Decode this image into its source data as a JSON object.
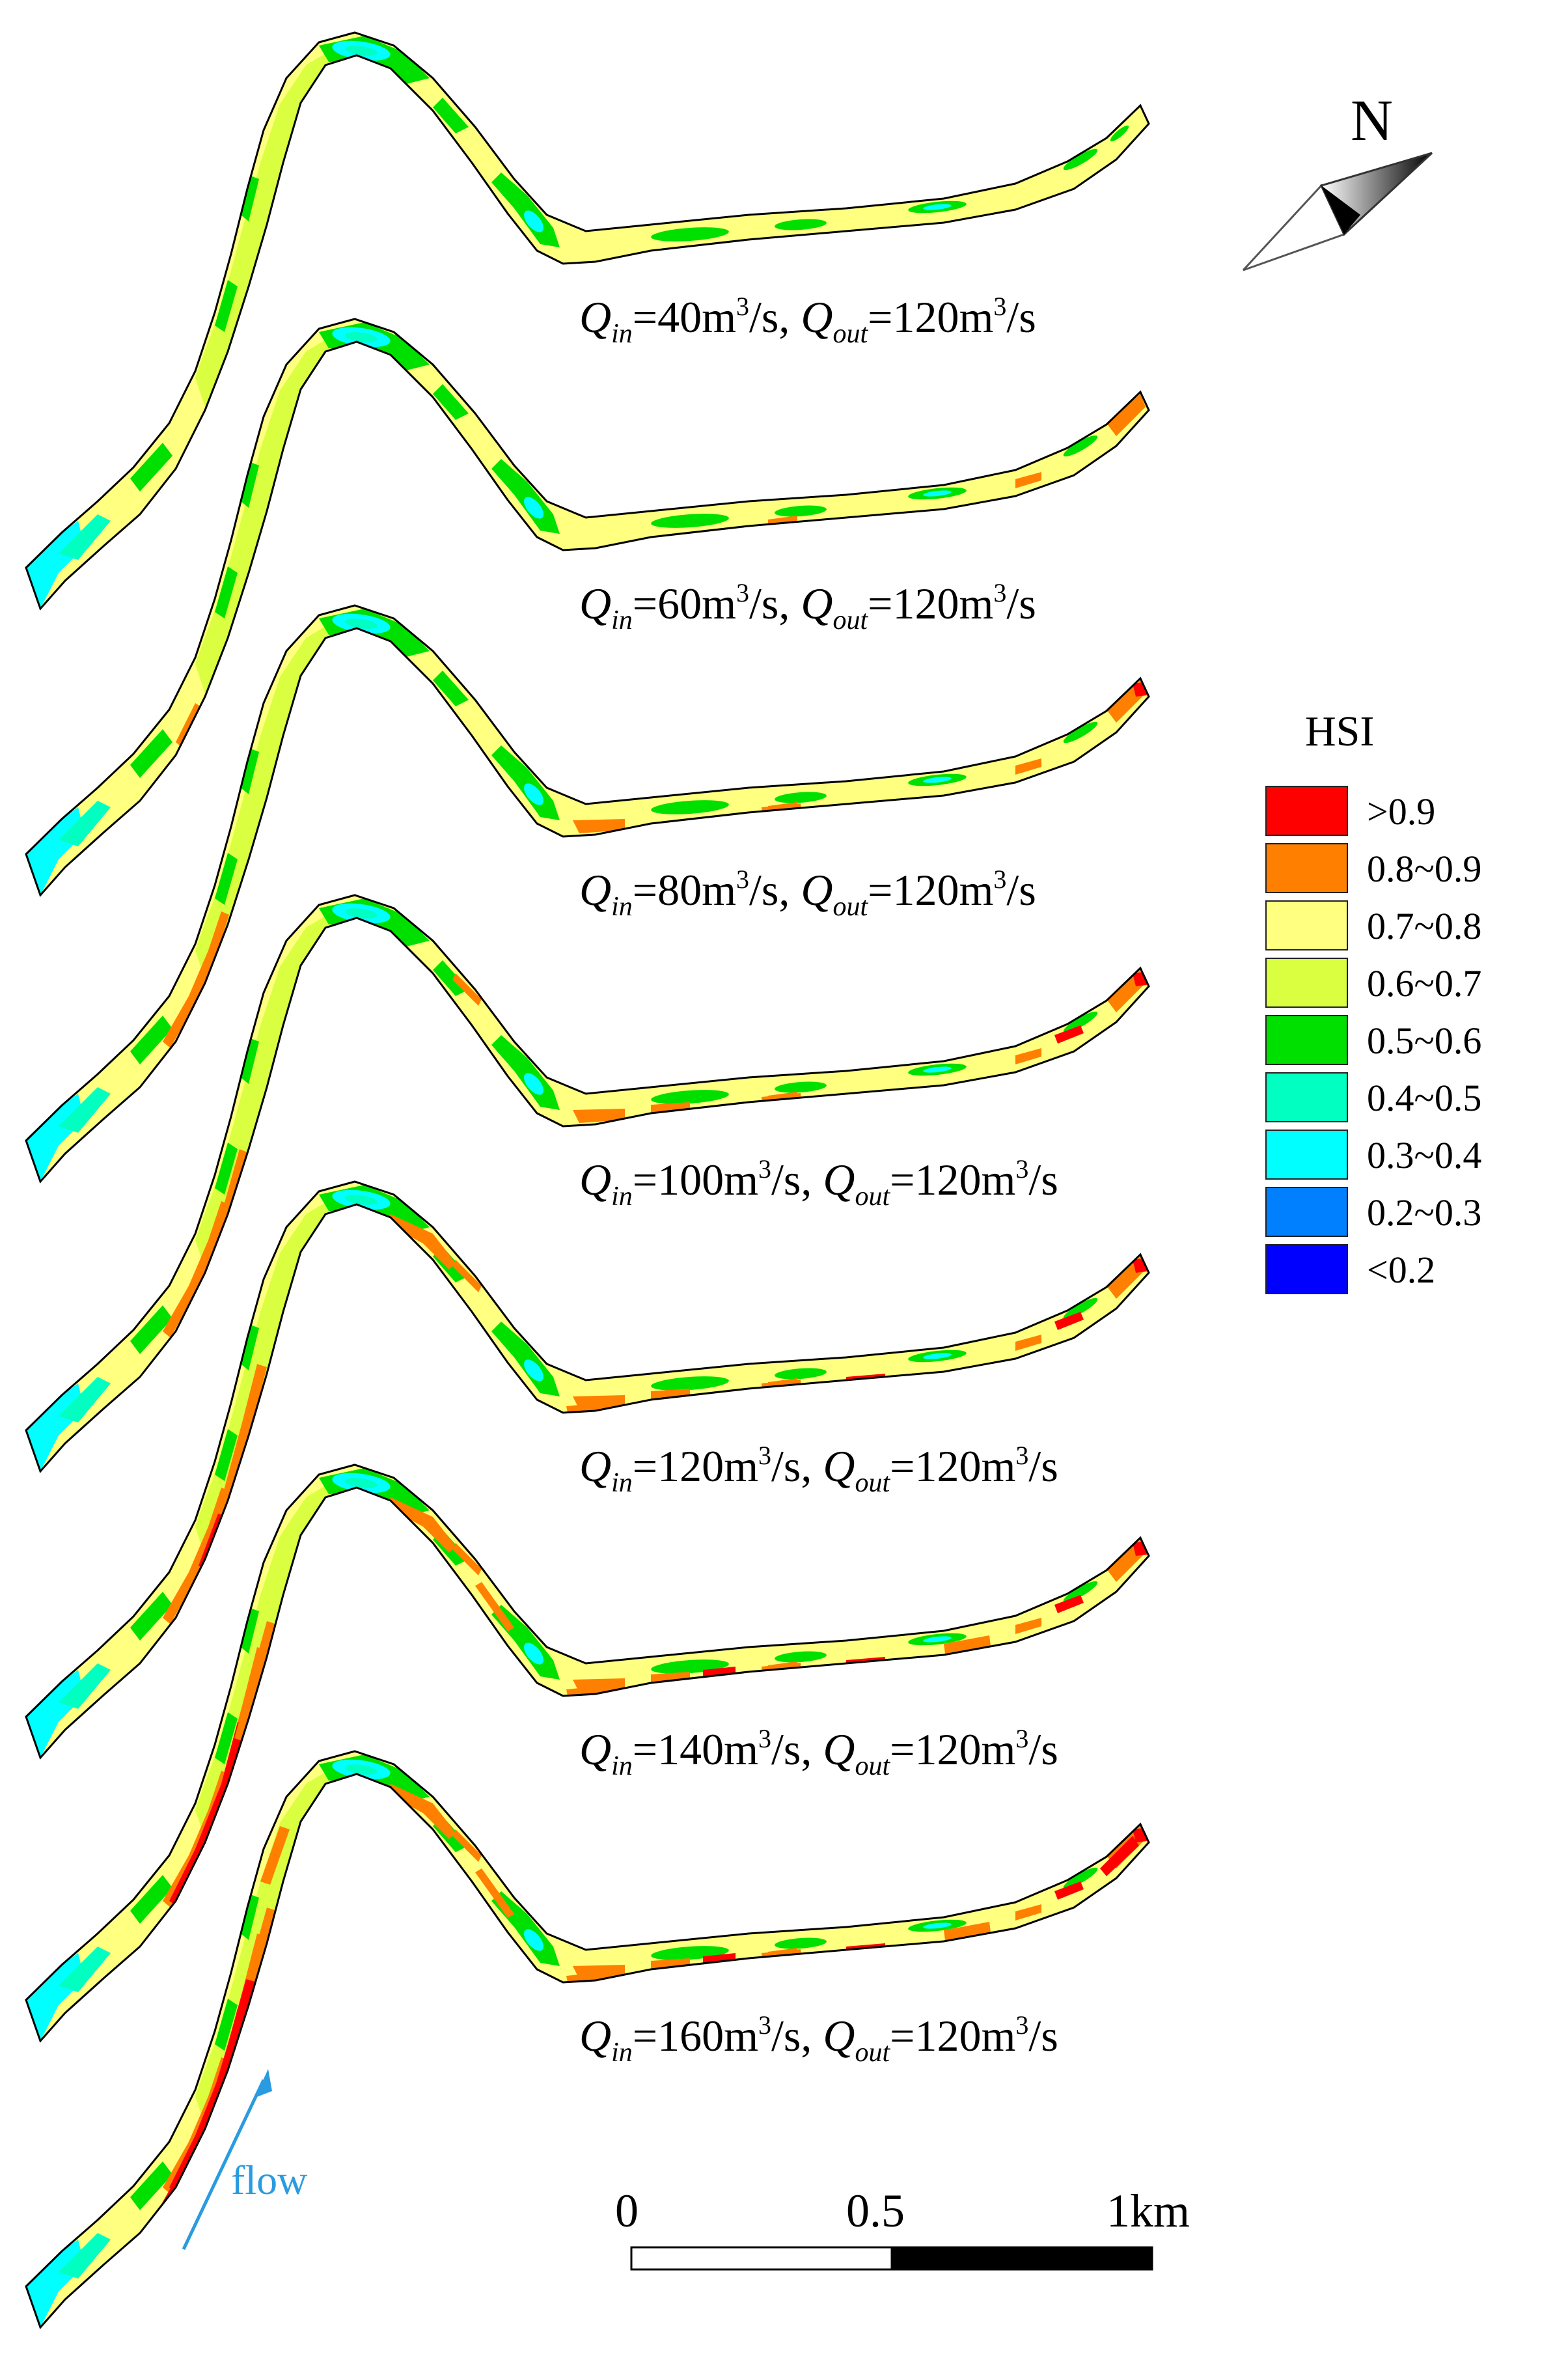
{
  "panels": [
    {
      "q_in": "40",
      "q_out": "120",
      "intensity": 0
    },
    {
      "q_in": "60",
      "q_out": "120",
      "intensity": 1
    },
    {
      "q_in": "80",
      "q_out": "120",
      "intensity": 2
    },
    {
      "q_in": "100",
      "q_out": "120",
      "intensity": 3
    },
    {
      "q_in": "120",
      "q_out": "120",
      "intensity": 4
    },
    {
      "q_in": "140",
      "q_out": "120",
      "intensity": 5
    },
    {
      "q_in": "160",
      "q_out": "120",
      "intensity": 6
    }
  ],
  "caption": {
    "q": "Q",
    "in_sub": "in",
    "out_sub": "out",
    "unit": "m",
    "unit_sup": "3",
    "per_s": "/s",
    "eq": "=",
    "sep": ", "
  },
  "legend": {
    "title": "HSI",
    "items": [
      {
        "label": ">0.9",
        "color": "#ff0000"
      },
      {
        "label": "0.8~0.9",
        "color": "#ff8000"
      },
      {
        "label": "0.7~0.8",
        "color": "#ffff80"
      },
      {
        "label": "0.6~0.7",
        "color": "#d9ff40"
      },
      {
        "label": "0.5~0.6",
        "color": "#00e000"
      },
      {
        "label": "0.4~0.5",
        "color": "#00ffc0"
      },
      {
        "label": "0.3~0.4",
        "color": "#00ffff"
      },
      {
        "label": "0.2~0.3",
        "color": "#0080ff"
      },
      {
        "label": "<0.2",
        "color": "#0000ff"
      }
    ]
  },
  "north_label": "N",
  "flow_label": "flow",
  "flow_color": "#2a9be0",
  "scale_bar": {
    "labels": [
      "0",
      "0.5",
      "1km"
    ]
  }
}
